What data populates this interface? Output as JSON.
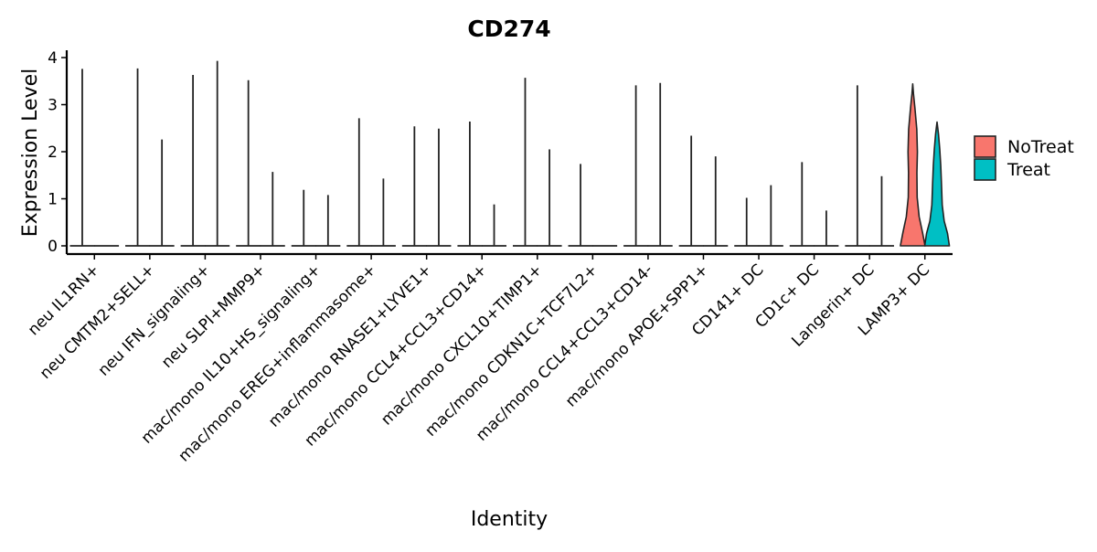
{
  "chart_data": {
    "type": "violin",
    "title": "CD274",
    "xlabel": "Identity",
    "ylabel": "Expression Level",
    "ylim": [
      -0.2,
      4.15
    ],
    "yticks": [
      0,
      1,
      2,
      3,
      4
    ],
    "categories": [
      "neu IL1RN+",
      "neu CMTM2+SELL+",
      "neu IFN_signaling+",
      "neu SLPI+MMP9+",
      "mac/mono IL10+HS_signaling+",
      "mac/mono EREG+inflammasome+",
      "mac/mono RNASE1+LYVE1+",
      "mac/mono CCL4+CCL3+CD14+",
      "mac/mono CXCL10+TIMP1+",
      "mac/mono CDKN1C+TCF7L2+",
      "mac/mono CCL4+CCL3+CD14-",
      "mac/mono APOE+SPP1+",
      "CD141+ DC",
      "CD1c+ DC",
      "Langerin+ DC",
      "LAMP3+ DC"
    ],
    "legend": {
      "position": "right",
      "entries": [
        {
          "name": "NoTreat",
          "color": "#F8766D"
        },
        {
          "name": "Treat",
          "color": "#00BFC4"
        }
      ]
    },
    "series": [
      {
        "name": "NoTreat",
        "max_values": [
          3.76,
          3.77,
          3.63,
          3.52,
          1.19,
          2.71,
          2.54,
          2.64,
          3.57,
          1.74,
          3.41,
          2.34,
          1.02,
          1.78,
          3.41,
          3.44
        ]
      },
      {
        "name": "Treat",
        "max_values": [
          0,
          2.26,
          3.93,
          1.57,
          1.08,
          1.43,
          2.49,
          0.88,
          2.05,
          0,
          3.46,
          1.9,
          1.29,
          0.75,
          1.48,
          2.63
        ]
      }
    ],
    "grid": false
  }
}
